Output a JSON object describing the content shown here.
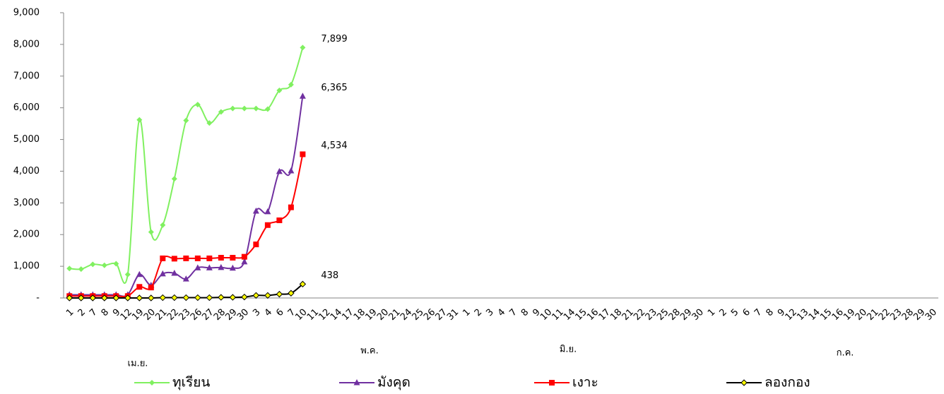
{
  "chart_data": {
    "type": "line",
    "categories": [
      "1",
      "2",
      "7",
      "8",
      "9",
      "12",
      "19",
      "20",
      "21",
      "22",
      "23",
      "26",
      "27",
      "28",
      "29",
      "30",
      "3",
      "4",
      "6",
      "7",
      "10",
      "11",
      "12",
      "14",
      "17",
      "18",
      "19",
      "20",
      "21",
      "24",
      "25",
      "26",
      "27",
      "31",
      "1",
      "2",
      "3",
      "4",
      "7",
      "8",
      "9",
      "10",
      "11",
      "14",
      "15",
      "16",
      "17",
      "18",
      "21",
      "22",
      "23",
      "25",
      "28",
      "29",
      "30",
      "1",
      "2",
      "5",
      "6",
      "7",
      "8",
      "9",
      "12",
      "13",
      "14",
      "15",
      "16",
      "19",
      "20",
      "21",
      "22",
      "23",
      "28",
      "29",
      "30"
    ],
    "groups": [
      "เม.ย.",
      "พ.ค.",
      "มิ.ย.",
      "ก.ค."
    ],
    "series": [
      {
        "name": "ทุเรียน",
        "color": "#80f060",
        "marker": "diamond",
        "values": [
          930,
          910,
          1060,
          1030,
          1080,
          740,
          5620,
          2080,
          2300,
          3760,
          5600,
          6100,
          5520,
          5870,
          5980,
          5980,
          5980,
          5960,
          6550,
          6730,
          7899,
          null,
          null,
          null,
          null,
          null,
          null,
          null,
          null,
          null,
          null,
          null,
          null,
          null,
          null,
          null,
          null,
          null,
          null,
          null,
          null,
          null,
          null,
          null,
          null,
          null,
          null,
          null,
          null,
          null,
          null,
          null,
          null,
          null,
          null,
          null,
          null,
          null,
          null,
          null,
          null,
          null,
          null,
          null,
          null,
          null,
          null,
          null,
          null,
          null,
          null,
          null,
          null,
          null,
          null
        ],
        "value_labels": [
          null,
          null,
          null,
          null,
          null,
          null,
          null,
          null,
          null,
          null,
          null,
          null,
          null,
          null,
          null,
          null,
          null,
          null,
          null,
          null,
          "7,899",
          null,
          null,
          null,
          null,
          null,
          null,
          null,
          null,
          null,
          null,
          null,
          null,
          null,
          null,
          null,
          null,
          null,
          null,
          null,
          null,
          null,
          null,
          null,
          null,
          null,
          null,
          null,
          null,
          null,
          null,
          null,
          null,
          null,
          null,
          null,
          null,
          null,
          null,
          null,
          null,
          null,
          null,
          null,
          null,
          null,
          null,
          null,
          null,
          null,
          null,
          null,
          null,
          null,
          null
        ]
      },
      {
        "name": "มังคุด",
        "color": "#7030a0",
        "marker": "triangle",
        "values": [
          100,
          100,
          100,
          100,
          100,
          100,
          740,
          400,
          760,
          780,
          600,
          950,
          950,
          960,
          940,
          1140,
          2740,
          2720,
          3990,
          4010,
          6365,
          null,
          null,
          null,
          null,
          null,
          null,
          null,
          null,
          null,
          null,
          null,
          null,
          null,
          null,
          null,
          null,
          null,
          null,
          null,
          null,
          null,
          null,
          null,
          null,
          null,
          null,
          null,
          null,
          null,
          null,
          null,
          null,
          null,
          null,
          null,
          null,
          null,
          null,
          null,
          null,
          null,
          null,
          null,
          null,
          null,
          null,
          null,
          null,
          null,
          null,
          null,
          null,
          null,
          null
        ],
        "value_labels": [
          null,
          null,
          null,
          null,
          null,
          null,
          null,
          null,
          null,
          null,
          null,
          null,
          null,
          null,
          null,
          null,
          null,
          null,
          null,
          null,
          "6,365",
          null,
          null,
          null,
          null,
          null,
          null,
          null,
          null,
          null,
          null,
          null,
          null,
          null,
          null,
          null,
          null,
          null,
          null,
          null,
          null,
          null,
          null,
          null,
          null,
          null,
          null,
          null,
          null,
          null,
          null,
          null,
          null,
          null,
          null,
          null,
          null,
          null,
          null,
          null,
          null,
          null,
          null,
          null,
          null,
          null,
          null,
          null,
          null,
          null,
          null,
          null,
          null,
          null,
          null
        ]
      },
      {
        "name": "เงาะ",
        "color": "#ff0000",
        "marker": "square",
        "values": [
          60,
          60,
          60,
          60,
          60,
          60,
          350,
          330,
          1250,
          1240,
          1250,
          1250,
          1250,
          1270,
          1270,
          1300,
          1690,
          2300,
          2450,
          2860,
          4534,
          null,
          null,
          null,
          null,
          null,
          null,
          null,
          null,
          null,
          null,
          null,
          null,
          null,
          null,
          null,
          null,
          null,
          null,
          null,
          null,
          null,
          null,
          null,
          null,
          null,
          null,
          null,
          null,
          null,
          null,
          null,
          null,
          null,
          null,
          null,
          null,
          null,
          null,
          null,
          null,
          null,
          null,
          null,
          null,
          null,
          null,
          null,
          null,
          null,
          null,
          null,
          null,
          null,
          null
        ],
        "value_labels": [
          null,
          null,
          null,
          null,
          null,
          null,
          null,
          null,
          null,
          null,
          null,
          null,
          null,
          null,
          null,
          null,
          null,
          null,
          null,
          null,
          "4,534",
          null,
          null,
          null,
          null,
          null,
          null,
          null,
          null,
          null,
          null,
          null,
          null,
          null,
          null,
          null,
          null,
          null,
          null,
          null,
          null,
          null,
          null,
          null,
          null,
          null,
          null,
          null,
          null,
          null,
          null,
          null,
          null,
          null,
          null,
          null,
          null,
          null,
          null,
          null,
          null,
          null,
          null,
          null,
          null,
          null,
          null,
          null,
          null,
          null,
          null,
          null,
          null,
          null,
          null
        ]
      },
      {
        "name": "ลองกอง",
        "color": "#000000",
        "marker": "diamond-yellow",
        "values": [
          0,
          0,
          0,
          0,
          0,
          0,
          0,
          0,
          10,
          10,
          10,
          10,
          10,
          20,
          20,
          30,
          80,
          80,
          120,
          150,
          438,
          null,
          null,
          null,
          null,
          null,
          null,
          null,
          null,
          null,
          null,
          null,
          null,
          null,
          null,
          null,
          null,
          null,
          null,
          null,
          null,
          null,
          null,
          null,
          null,
          null,
          null,
          null,
          null,
          null,
          null,
          null,
          null,
          null,
          null,
          null,
          null,
          null,
          null,
          null,
          null,
          null,
          null,
          null,
          null,
          null,
          null,
          null,
          null,
          null,
          null,
          null,
          null,
          null,
          null
        ],
        "value_labels": [
          null,
          null,
          null,
          null,
          null,
          null,
          null,
          null,
          null,
          null,
          null,
          null,
          null,
          null,
          null,
          null,
          null,
          null,
          null,
          null,
          "438",
          null,
          null,
          null,
          null,
          null,
          null,
          null,
          null,
          null,
          null,
          null,
          null,
          null,
          null,
          null,
          null,
          null,
          null,
          null,
          null,
          null,
          null,
          null,
          null,
          null,
          null,
          null,
          null,
          null,
          null,
          null,
          null,
          null,
          null,
          null,
          null,
          null,
          null,
          null,
          null,
          null,
          null,
          null,
          null,
          null,
          null,
          null,
          null,
          null,
          null,
          null,
          null,
          null,
          null
        ]
      }
    ],
    "ylim": [
      0,
      9000
    ],
    "yticks": [
      {
        "value": 0,
        "label": "-"
      },
      {
        "value": 1000,
        "label": "1,000"
      },
      {
        "value": 2000,
        "label": "2,000"
      },
      {
        "value": 3000,
        "label": "3,000"
      },
      {
        "value": 4000,
        "label": "4,000"
      },
      {
        "value": 5000,
        "label": "5,000"
      },
      {
        "value": 6000,
        "label": "6,000"
      },
      {
        "value": 7000,
        "label": "7,000"
      },
      {
        "value": 8000,
        "label": "8,000"
      },
      {
        "value": 9000,
        "label": "9,000"
      }
    ],
    "grid": false,
    "legend": "bottom"
  }
}
